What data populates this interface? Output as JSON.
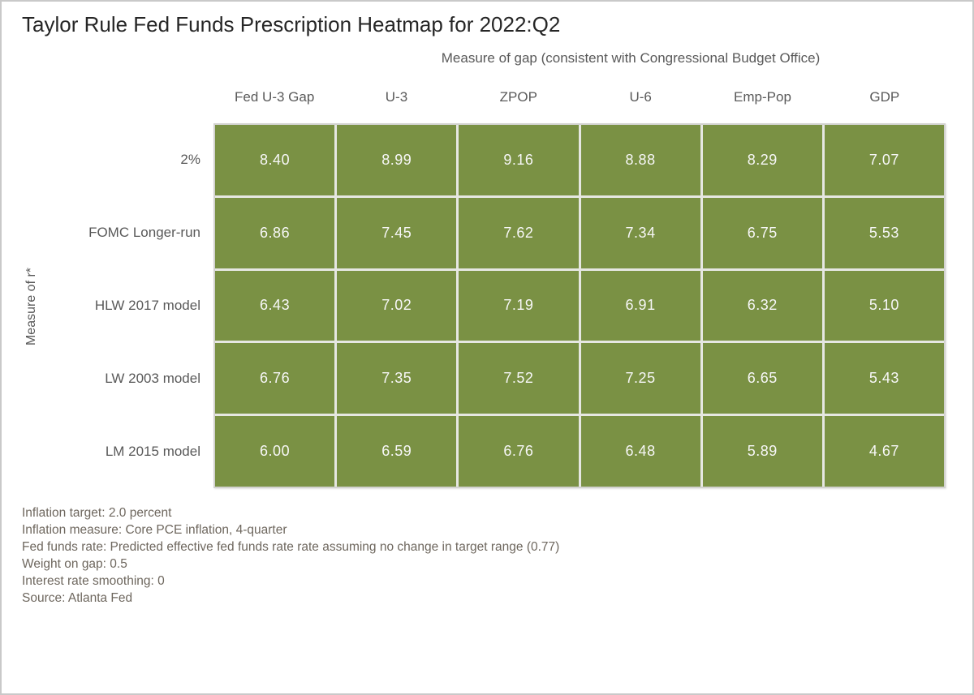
{
  "title": "Taylor Rule Fed Funds Prescription Heatmap for 2022:Q2",
  "chart_data": {
    "type": "heatmap",
    "title": "Taylor Rule Fed Funds Prescription Heatmap for 2022:Q2",
    "x_axis_label": "Measure of gap (consistent with Congressional Budget Office)",
    "y_axis_label": "Measure of r*",
    "columns": [
      "Fed U-3 Gap",
      "U-3",
      "ZPOP",
      "U-6",
      "Emp-Pop",
      "GDP"
    ],
    "rows": [
      "2%",
      "FOMC Longer-run",
      "HLW 2017 model",
      "LW 2003 model",
      "LM 2015 model"
    ],
    "values": [
      [
        8.4,
        8.99,
        9.16,
        8.88,
        8.29,
        7.07
      ],
      [
        6.86,
        7.45,
        7.62,
        7.34,
        6.75,
        5.53
      ],
      [
        6.43,
        7.02,
        7.19,
        6.91,
        6.32,
        5.1
      ],
      [
        6.76,
        7.35,
        7.52,
        7.25,
        6.65,
        5.43
      ],
      [
        6.0,
        6.59,
        6.76,
        6.48,
        5.89,
        4.67
      ]
    ],
    "value_format": "two_decimals",
    "cell_color": "#7a9144",
    "cell_text_color": "#f7f7f7",
    "gridline_color": "#e6e7e2",
    "legend_position": "none",
    "grid": true
  },
  "footnotes": [
    "Inflation target: 2.0 percent",
    "Inflation measure: Core PCE inflation, 4-quarter",
    "Fed funds rate: Predicted effective fed funds rate rate assuming no change in target range (0.77)",
    "Weight on gap: 0.5",
    "Interest rate smoothing: 0",
    "Source: Atlanta Fed"
  ]
}
